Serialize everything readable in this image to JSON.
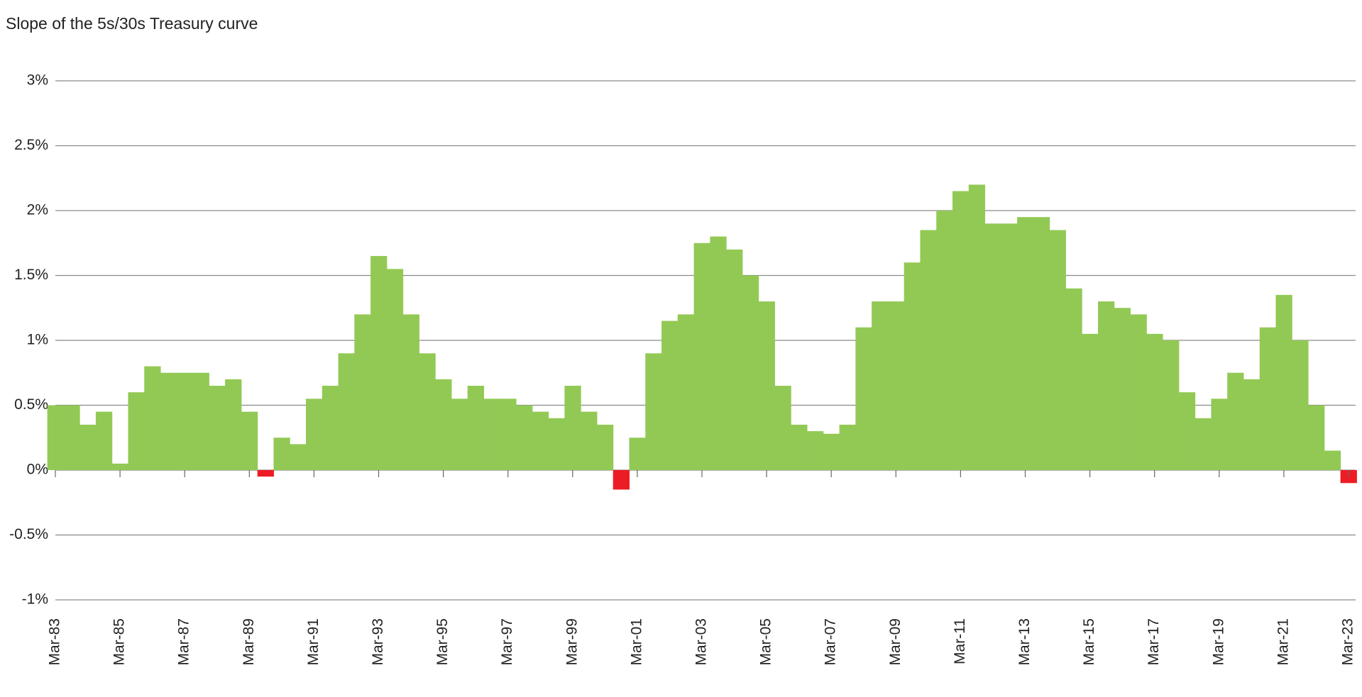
{
  "chart_data": {
    "type": "bar",
    "title": "Slope of the 5s/30s Treasury curve",
    "categories": [
      "Mar-83",
      null,
      null,
      null,
      "Mar-85",
      null,
      null,
      null,
      "Mar-87",
      null,
      null,
      null,
      "Mar-89",
      null,
      null,
      null,
      "Mar-91",
      null,
      null,
      null,
      "Mar-93",
      null,
      null,
      null,
      "Mar-95",
      null,
      null,
      null,
      "Mar-97",
      null,
      null,
      null,
      "Mar-99",
      null,
      null,
      null,
      "Mar-01",
      null,
      null,
      null,
      "Mar-03",
      null,
      null,
      null,
      "Mar-05",
      null,
      null,
      null,
      "Mar-07",
      null,
      null,
      null,
      "Mar-09",
      null,
      null,
      null,
      "Mar-11",
      null,
      null,
      null,
      "Mar-13",
      null,
      null,
      null,
      "Mar-15",
      null,
      null,
      null,
      "Mar-17",
      null,
      null,
      null,
      "Mar-19",
      null,
      null,
      null,
      "Mar-21",
      null,
      null,
      null,
      "Mar-23"
    ],
    "values": [
      0.5,
      0.5,
      0.35,
      0.45,
      0.05,
      0.6,
      0.8,
      0.75,
      0.75,
      0.75,
      0.65,
      0.7,
      0.45,
      -0.05,
      0.25,
      0.2,
      0.55,
      0.65,
      0.9,
      1.2,
      1.65,
      1.55,
      1.2,
      0.9,
      0.7,
      0.55,
      0.65,
      0.55,
      0.55,
      0.5,
      0.45,
      0.4,
      0.65,
      0.45,
      0.35,
      -0.15,
      0.25,
      0.9,
      1.15,
      1.2,
      1.75,
      1.8,
      1.7,
      1.5,
      1.3,
      0.65,
      0.35,
      0.3,
      0.28,
      0.35,
      1.1,
      1.3,
      1.3,
      1.6,
      1.85,
      2.0,
      2.15,
      2.2,
      1.9,
      1.9,
      1.95,
      1.95,
      1.85,
      1.4,
      1.05,
      1.3,
      1.25,
      1.2,
      1.05,
      1.0,
      0.6,
      0.4,
      0.55,
      0.75,
      0.7,
      1.1,
      1.35,
      1.0,
      0.5,
      0.15,
      -0.1
    ],
    "color": "#92c955",
    "negative_color": "#ed1c24",
    "ylim": [
      -1,
      3
    ],
    "yticks": [
      {
        "value": -1,
        "label": "-1%"
      },
      {
        "value": -0.5,
        "label": "-0.5%"
      },
      {
        "value": 0,
        "label": "0%"
      },
      {
        "value": 0.5,
        "label": "0.5%"
      },
      {
        "value": 1,
        "label": "1%"
      },
      {
        "value": 1.5,
        "label": "1.5%"
      },
      {
        "value": 2,
        "label": "2%"
      },
      {
        "value": 2.5,
        "label": "2.5%"
      },
      {
        "value": 3,
        "label": "3%"
      }
    ],
    "grid": true
  }
}
